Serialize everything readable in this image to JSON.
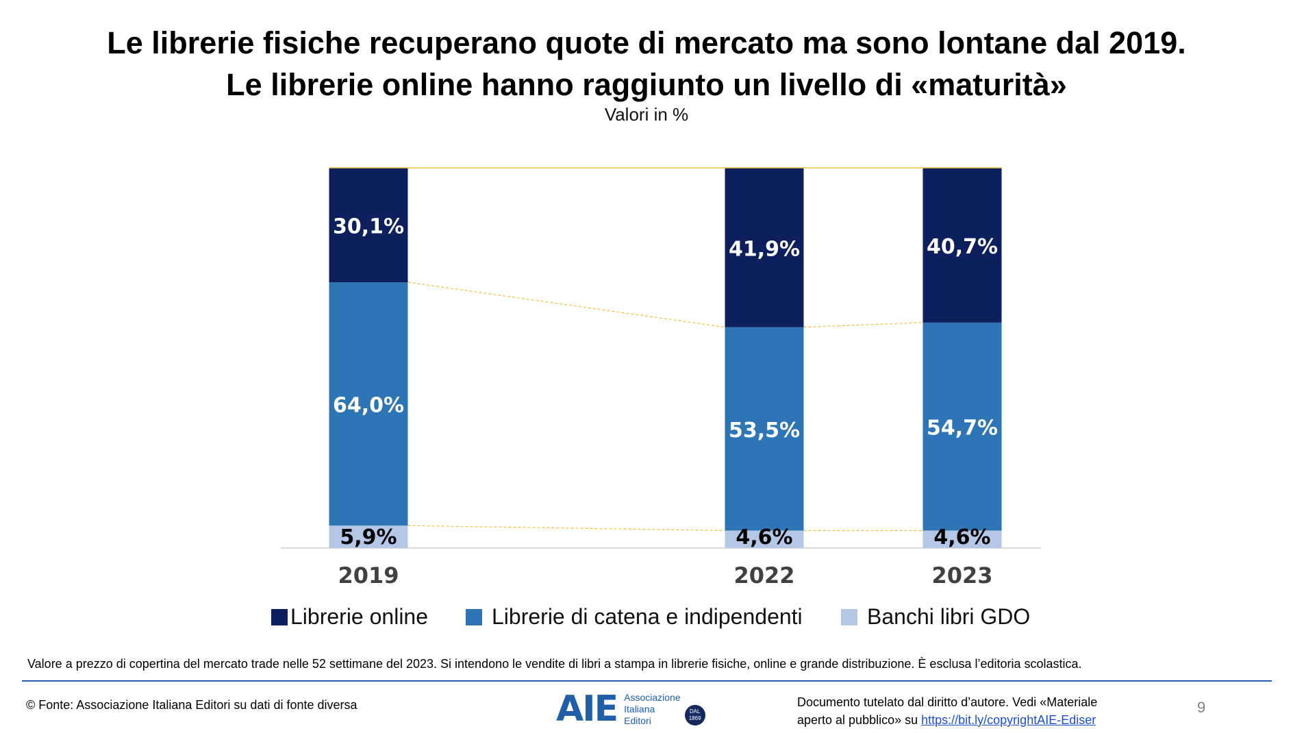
{
  "title_line1": "Le librerie fisiche recuperano quote di mercato ma sono lontane dal 2019.",
  "title_line2": "Le librerie online hanno raggiunto un livello di «maturità»",
  "subtitle": "Valori in %",
  "chart_data": {
    "type": "bar",
    "stacked": true,
    "categories": [
      "2019",
      "2022",
      "2023"
    ],
    "series": [
      {
        "name": "Banchi libri GDO",
        "values": [
          5.9,
          4.6,
          4.6
        ],
        "labels": [
          "5,9%",
          "4,6%",
          "4,6%"
        ],
        "color": "#b4c7e7",
        "label_color": "#000000"
      },
      {
        "name": "Librerie di catena e indipendenti",
        "values": [
          64.0,
          53.5,
          54.7
        ],
        "labels": [
          "64,0%",
          "53,5%",
          "54,7%"
        ],
        "color": "#2e75b6",
        "label_color": "#ffffff"
      },
      {
        "name": "Librerie online",
        "values": [
          30.1,
          41.9,
          40.7
        ],
        "labels": [
          "30,1%",
          "41,9%",
          "40,7%"
        ],
        "color": "#0d1f5c",
        "label_color": "#ffffff"
      }
    ],
    "ylim": [
      0,
      100
    ],
    "connector_color": "#f2c037",
    "legend_position": "bottom"
  },
  "legend": [
    {
      "label": "Librerie online",
      "color": "#0d1f5c"
    },
    {
      "label": "Librerie di catena e indipendenti",
      "color": "#2e75b6"
    },
    {
      "label": "Banchi libri GDO",
      "color": "#b4c7e7"
    }
  ],
  "note": "Valore a prezzo di copertina del mercato trade nelle 52 settimane del 2023. Si intendono le vendite di libri a stampa in librerie fisiche, online e grande distribuzione. È esclusa l’editoria scolastica.",
  "source": "© Fonte: Associazione Italiana Editori su dati di fonte diversa",
  "copyright_line1": "Documento tutelato dal diritto d’autore. Vedi «Materiale",
  "copyright_line2_prefix": "aperto al pubblico» su ",
  "copyright_link": "https://bit.ly/copyrightAIE-Ediser",
  "page_number": "9",
  "logo": {
    "mark": "AIE",
    "line1": "Associazione",
    "line2": "Italiana",
    "line3": "Editori",
    "seal_line1": "DAL",
    "seal_line2": "1869"
  }
}
